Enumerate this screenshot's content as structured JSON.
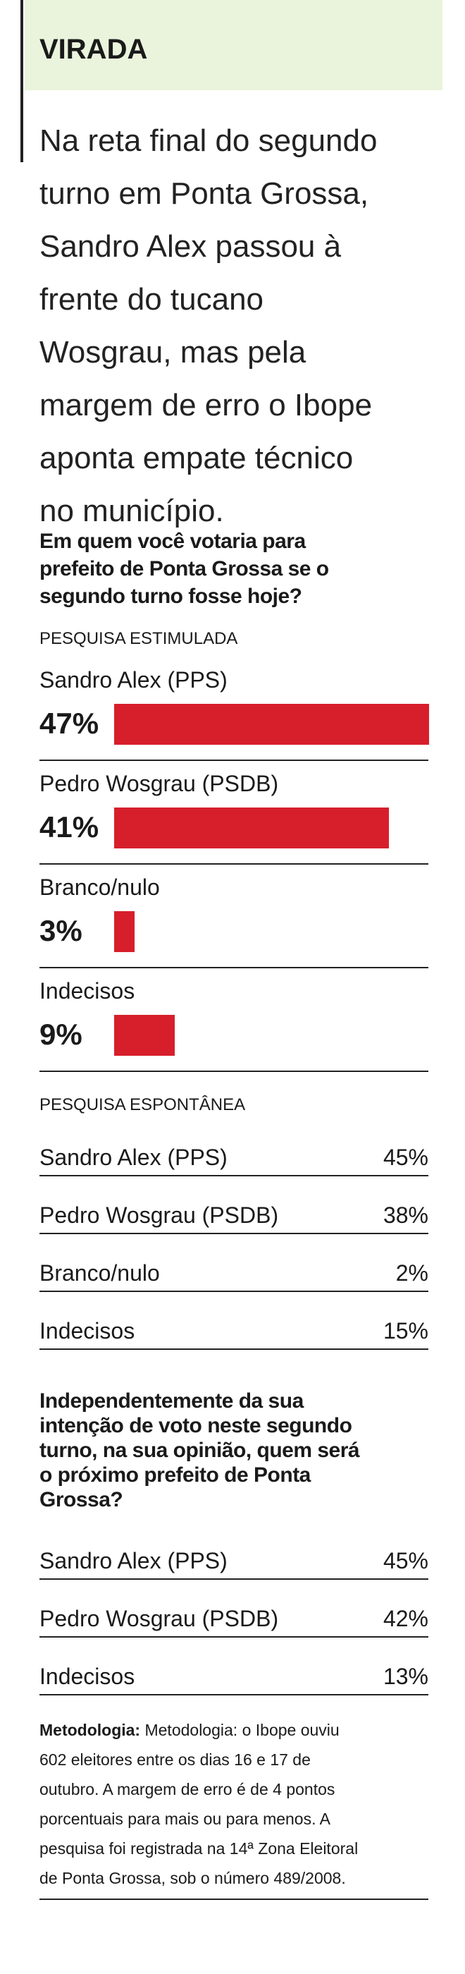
{
  "header": {
    "title": "VIRADA",
    "intro": [
      "Na reta final do segundo",
      "turno em Ponta Grossa,",
      "Sandro Alex passou à",
      "frente do tucano",
      "Wosgrau, mas pela",
      "margem de erro o Ibope",
      "aponta empate técnico",
      "no município."
    ]
  },
  "question1": [
    "Em quem você votaria para",
    "prefeito de Ponta Grossa se o",
    "segundo turno fosse hoje?"
  ],
  "stimulated": {
    "title": "PESQUISA ESTIMULADA",
    "categories": [
      "Sandro Alex (PPS)",
      "Pedro Wosgrau (PSDB)",
      "Branco/nulo",
      "Indecisos"
    ],
    "values": [
      47,
      41,
      3,
      9
    ],
    "value_labels": [
      "47%",
      "41%",
      "3%",
      "9%"
    ],
    "color": "#d71f2b"
  },
  "spontaneous": {
    "title": "PESQUISA ESPONTÂNEA",
    "rows": [
      [
        "Sandro Alex (PPS)",
        "45%"
      ],
      [
        "Pedro Wosgrau (PSDB)",
        "38%"
      ],
      [
        "Branco/nulo",
        "2%"
      ],
      [
        "Indecisos",
        "15%"
      ]
    ]
  },
  "question2": [
    "Independentemente da sua",
    "intenção de voto neste segundo",
    "turno, na sua opinião, quem será",
    "o próximo prefeito de Ponta",
    "Grossa?"
  ],
  "prediction": {
    "rows": [
      [
        "Sandro Alex (PPS)",
        "45%"
      ],
      [
        "Pedro Wosgrau (PSDB)",
        "42%"
      ],
      [
        "Indecisos",
        "13%"
      ]
    ]
  },
  "methodology": {
    "label": "Metodologia:",
    "lines": [
      "Metodologia: o Ibope ouviu",
      "602 eleitores entre os dias 16 e 17 de",
      "outubro. A margem de erro é de 4 pontos",
      "porcentuais para mais ou para menos. A",
      "pesquisa foi registrada na 14ª Zona Eleitoral",
      "de Ponta Grossa, sob o número 489/2008."
    ]
  }
}
